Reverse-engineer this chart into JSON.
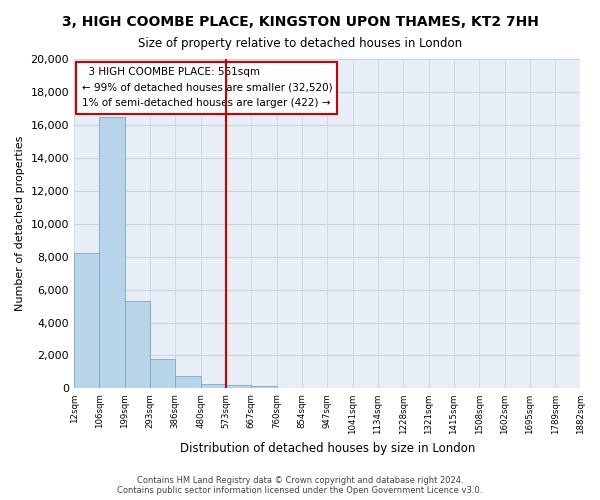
{
  "title": "3, HIGH COOMBE PLACE, KINGSTON UPON THAMES, KT2 7HH",
  "subtitle": "Size of property relative to detached houses in London",
  "xlabel": "Distribution of detached houses by size in London",
  "ylabel": "Number of detached properties",
  "bar_values": [
    8200,
    16500,
    5300,
    1800,
    750,
    280,
    200,
    150,
    0,
    0,
    0,
    0,
    0,
    0,
    0,
    0,
    0,
    0,
    0,
    0
  ],
  "tick_labels": [
    "12sqm",
    "106sqm",
    "199sqm",
    "293sqm",
    "386sqm",
    "480sqm",
    "573sqm",
    "667sqm",
    "760sqm",
    "854sqm",
    "947sqm",
    "1041sqm",
    "1134sqm",
    "1228sqm",
    "1321sqm",
    "1415sqm",
    "1508sqm",
    "1602sqm",
    "1695sqm",
    "1789sqm",
    "1882sqm"
  ],
  "ylim": [
    0,
    20000
  ],
  "yticks": [
    0,
    2000,
    4000,
    6000,
    8000,
    10000,
    12000,
    14000,
    16000,
    18000,
    20000
  ],
  "bar_color": "#b8d4e8",
  "bar_edge_color": "#7aaac8",
  "reference_line_x": 6.0,
  "reference_line_color": "#cc0000",
  "annotation_title": "3 HIGH COOMBE PLACE: 561sqm",
  "annotation_line1": "← 99% of detached houses are smaller (32,520)",
  "annotation_line2": "1% of semi-detached houses are larger (422) →",
  "footer_line1": "Contains HM Land Registry data © Crown copyright and database right 2024.",
  "footer_line2": "Contains public sector information licensed under the Open Government Licence v3.0.",
  "background_color": "#ffffff",
  "axes_bg_color": "#e8eef5",
  "grid_color": "#c8d4e0"
}
